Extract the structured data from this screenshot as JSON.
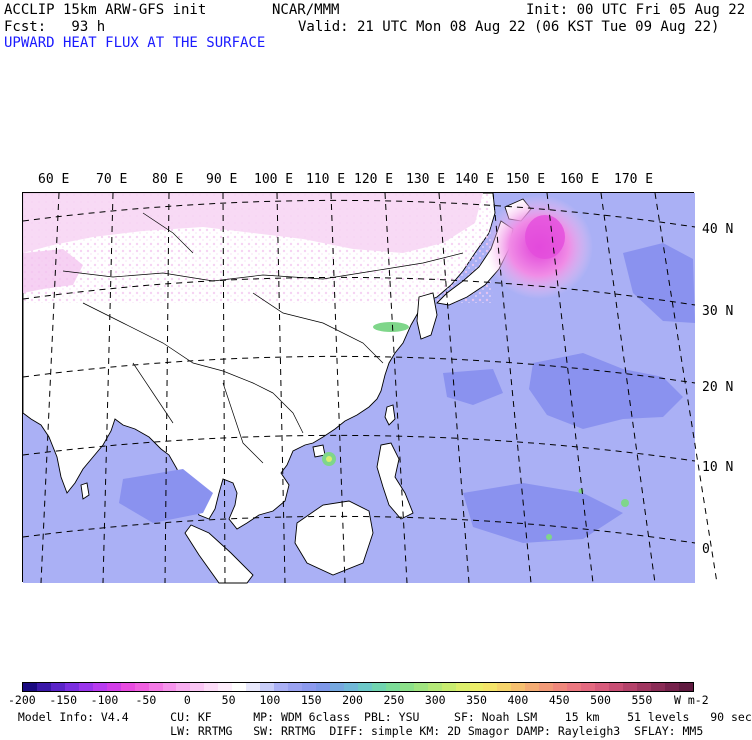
{
  "header": {
    "model": "ACCLIP 15km ARW-GFS init",
    "org": "NCAR/MMM",
    "init": "Init: 00 UTC Fri 05 Aug 22",
    "fcst": "Fcst:   93 h",
    "valid": "Valid: 21 UTC Mon 08 Aug 22 (06 KST Tue 09 Aug 22)",
    "field": "UPWARD HEAT FLUX AT THE SURFACE"
  },
  "map": {
    "lon_labels": [
      "60 E",
      "70 E",
      "80 E",
      "90 E",
      "100 E",
      "110 E",
      "120 E",
      "130 E",
      "140 E",
      "150 E",
      "160 E",
      "170 E"
    ],
    "lat_labels": [
      "40 N",
      "30 N",
      "20 N",
      "10 N",
      "0"
    ],
    "colors": {
      "ocean": "#aab0f5",
      "land_low": "#ffffff",
      "land_pink": "#f7d6f4",
      "pink_strong": "#f08ce6",
      "magenta": "#e052e0",
      "blue_patch": "#8a92ef",
      "green": "#7fd68a",
      "coast": "#000000"
    }
  },
  "colorbar": {
    "labels": [
      "-200",
      "-150",
      "-100",
      "-50",
      "0",
      "50",
      "100",
      "150",
      "200",
      "250",
      "300",
      "350",
      "400",
      "450",
      "500",
      "550"
    ],
    "unit": "W m-2",
    "colors": [
      "#1a0a80",
      "#3a18a8",
      "#5a24c8",
      "#7a2ee0",
      "#9a36ec",
      "#b83cf0",
      "#d23ee8",
      "#e84ce0",
      "#f060e0",
      "#f47ae6",
      "#f694ec",
      "#f8aef0",
      "#fac6f4",
      "#fcdcf8",
      "#feeefc",
      "#ffffff",
      "#e8e8fc",
      "#c8cdf8",
      "#aab0f5",
      "#9aa2f1",
      "#8c9aee",
      "#7e98e8",
      "#76a8e0",
      "#70b8d8",
      "#6cc8c8",
      "#70d4b0",
      "#7cdc98",
      "#8ce08a",
      "#a0e480",
      "#b4e878",
      "#c8ec70",
      "#dcee6c",
      "#ecee6a",
      "#f4e46a",
      "#f6d46c",
      "#f6c070",
      "#f4ac74",
      "#f29a78",
      "#f0887c",
      "#ec7880",
      "#e46a80",
      "#d85c7c",
      "#c84e74",
      "#b4426a",
      "#a03660",
      "#8a2c56",
      "#76224c",
      "#601a40"
    ]
  },
  "footer": {
    "line1": "  Model Info: V4.4      CU: KF      MP: WDM 6class  PBL: YSU     SF: Noah LSM    15 km    51 levels   90 sec",
    "line2": "                        LW: RRTMG   SW: RRTMG  DIFF: simple KM: 2D Smagor DAMP: Rayleigh3  SFLAY: MM5"
  }
}
